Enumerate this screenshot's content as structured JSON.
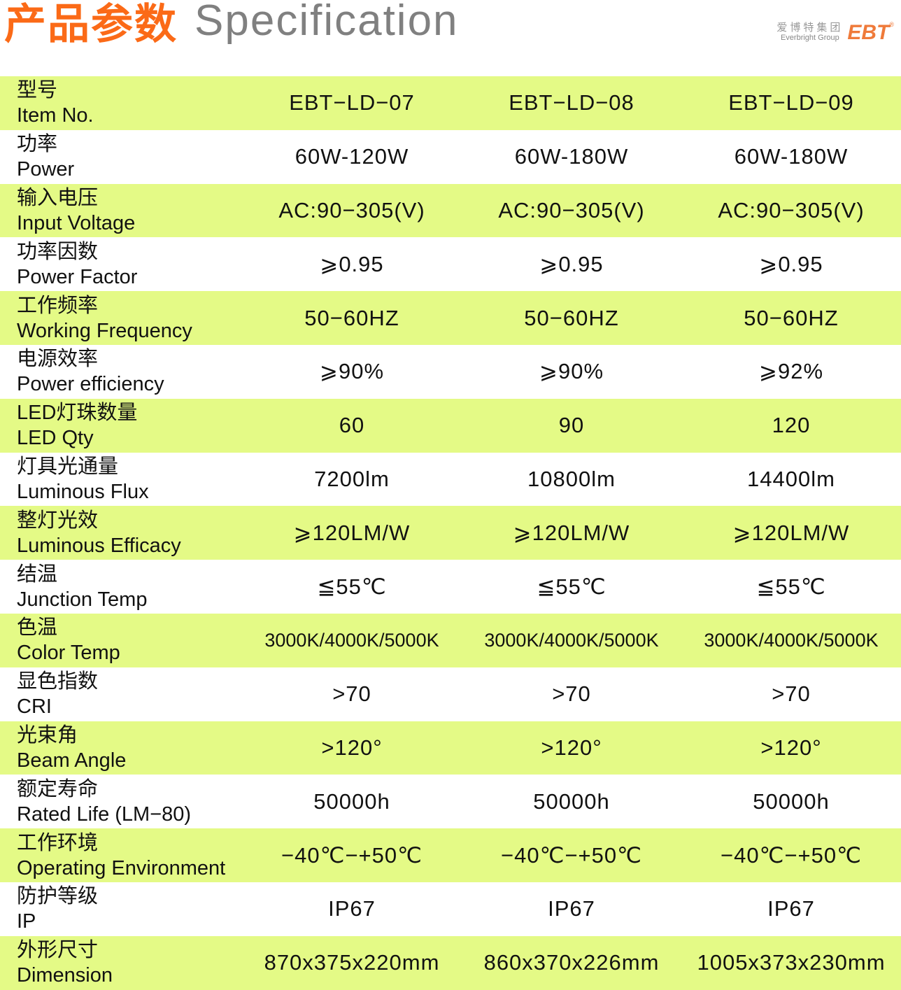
{
  "title": {
    "cn": "产品参数",
    "en": "Specification"
  },
  "colors": {
    "title_accent": "#fb6a17",
    "row_highlight": "#e4fa86",
    "logo": "#ef7a3a"
  },
  "rows": [
    {
      "cn": "型号",
      "en": "Item No.",
      "values": [
        "EBT−LD−07",
        "EBT−LD−08",
        "EBT−LD−09"
      ]
    },
    {
      "cn": "功率",
      "en": "Power",
      "values": [
        "60W-120W",
        "60W-180W",
        "60W-180W"
      ]
    },
    {
      "cn": "输入电压",
      "en": "Input Voltage",
      "values": [
        "AC:90−305(V)",
        "AC:90−305(V)",
        "AC:90−305(V)"
      ]
    },
    {
      "cn": "功率因数",
      "en": "Power Factor",
      "values": [
        "⩾0.95",
        "⩾0.95",
        "⩾0.95"
      ]
    },
    {
      "cn": "工作频率",
      "en": "Working Frequency",
      "values": [
        "50−60HZ",
        "50−60HZ",
        "50−60HZ"
      ]
    },
    {
      "cn": "电源效率",
      "en": "Power efficiency",
      "values": [
        "⩾90%",
        "⩾90%",
        "⩾92%"
      ]
    },
    {
      "cn": "LED灯珠数量",
      "en": "LED Qty",
      "values": [
        "60",
        "90",
        "120"
      ]
    },
    {
      "cn": "灯具光通量",
      "en": "Luminous Flux",
      "values": [
        "7200lm",
        "10800lm",
        "14400lm"
      ]
    },
    {
      "cn": "整灯光效",
      "en": "Luminous Efficacy",
      "values": [
        "⩾120LM/W",
        "⩾120LM/W",
        "⩾120LM/W"
      ]
    },
    {
      "cn": "结温",
      "en": "Junction Temp",
      "values": [
        "≦55℃",
        "≦55℃",
        "≦55℃"
      ]
    },
    {
      "cn": "色温",
      "en": "Color Temp",
      "values": [
        "3000K/4000K/5000K",
        "3000K/4000K/5000K",
        "3000K/4000K/5000K"
      ]
    },
    {
      "cn": "显色指数",
      "en": "CRI",
      "values": [
        ">70",
        ">70",
        ">70"
      ]
    },
    {
      "cn": "光束角",
      "en": "Beam Angle",
      "values": [
        ">120°",
        ">120°",
        ">120°"
      ]
    },
    {
      "cn": "额定寿命",
      "en": "Rated Life (LM−80)",
      "values": [
        "50000h",
        "50000h",
        "50000h"
      ]
    },
    {
      "cn": "工作环境",
      "en": "Operating Environment",
      "values": [
        "−40℃−+50℃",
        "−40℃−+50℃",
        "−40℃−+50℃"
      ]
    },
    {
      "cn": "防护等级",
      "en": "IP",
      "values": [
        "IP67",
        "IP67",
        "IP67"
      ]
    },
    {
      "cn": "外形尺寸",
      "en": "Dimension",
      "values": [
        "870x375x220mm",
        "860x370x226mm",
        "1005x373x230mm"
      ]
    }
  ],
  "logo": {
    "cn": "爱博特集团",
    "en": "Everbright Group",
    "mark": "EBT",
    "reg": "®"
  }
}
